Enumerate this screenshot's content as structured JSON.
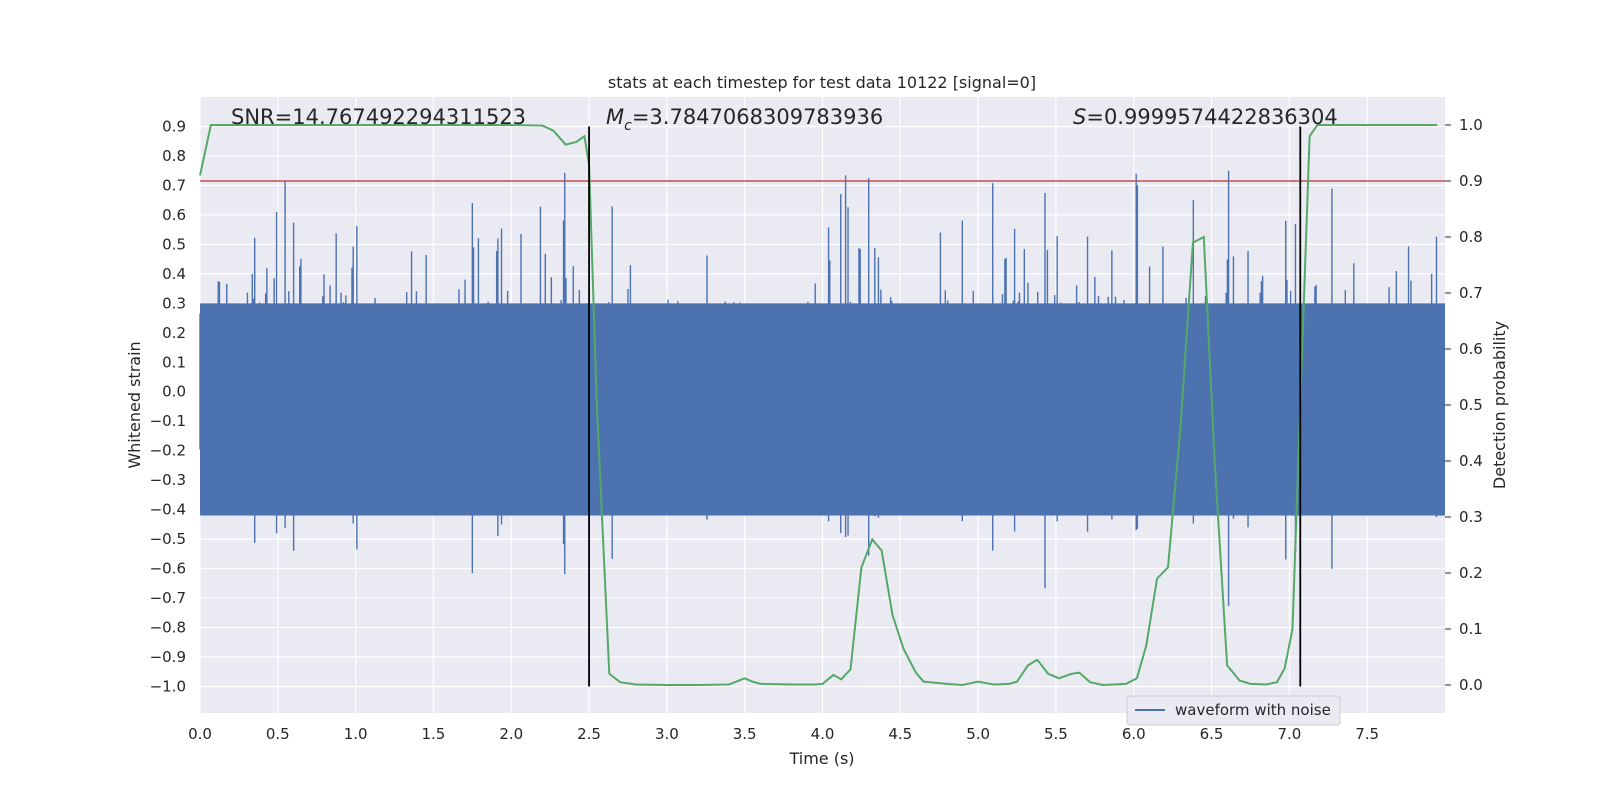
{
  "chart_data": {
    "type": "line",
    "title": "stats at each timestep for test data 10122 [signal=0]",
    "xlabel": "Time (s)",
    "ylabel": "Whitened strain",
    "ylabel_right": "Detection probability",
    "xlim": [
      0.0,
      8.0
    ],
    "ylim": [
      -1.09,
      1.0
    ],
    "ylim_right": [
      -0.05,
      1.05
    ],
    "xticks": [
      0.0,
      0.5,
      1.0,
      1.5,
      2.0,
      2.5,
      3.0,
      3.5,
      4.0,
      4.5,
      5.0,
      5.5,
      6.0,
      6.5,
      7.0,
      7.5
    ],
    "xtick_labels": [
      "0.0",
      "0.5",
      "1.0",
      "1.5",
      "2.0",
      "2.5",
      "3.0",
      "3.5",
      "4.0",
      "4.5",
      "5.0",
      "5.5",
      "6.0",
      "6.5",
      "7.0",
      "7.5"
    ],
    "yticks": [
      0.9,
      0.8,
      0.7,
      0.6,
      0.5,
      0.4,
      0.3,
      0.2,
      0.1,
      0.0,
      -0.1,
      -0.2,
      -0.3,
      -0.4,
      -0.5,
      -0.6,
      -0.7,
      -0.8,
      -0.9,
      -1.0
    ],
    "ytick_labels": [
      "0.9",
      "0.8",
      "0.7",
      "0.6",
      "0.5",
      "0.4",
      "0.3",
      "0.2",
      "0.1",
      "0.0",
      "−0.1",
      "−0.2",
      "−0.3",
      "−0.4",
      "−0.5",
      "−0.6",
      "−0.7",
      "−0.8",
      "−0.9",
      "−1.0"
    ],
    "yticks_right": [
      1.0,
      0.9,
      0.8,
      0.7,
      0.6,
      0.5,
      0.4,
      0.3,
      0.2,
      0.1,
      0.0
    ],
    "ytick_labels_right": [
      "1.0",
      "0.9",
      "0.8",
      "0.7",
      "0.6",
      "0.5",
      "0.4",
      "0.3",
      "0.2",
      "0.1",
      "0.0"
    ],
    "annotations": {
      "snr": "SNR=14.767492294311523",
      "mc_symbol": "M",
      "mc_sub": "c",
      "mc_value": "=3.7847068309783936",
      "s_symbol": "S",
      "s_value": "=0.9999574422836304"
    },
    "legend": {
      "label": "waveform with noise",
      "location": "lower right"
    },
    "threshold": {
      "value": 0.9,
      "axis": "right",
      "color": "#c44e52"
    },
    "vertical_markers": {
      "x": [
        2.5,
        7.07
      ],
      "ymin": -1.0,
      "ymax": 0.9,
      "color": "#000000"
    },
    "series": [
      {
        "name": "waveform with noise",
        "axis": "left",
        "color": "#4c72b0",
        "envelope_typical": 0.34,
        "samples_per_second": 128,
        "seed": 10122
      },
      {
        "name": "Detection probability",
        "axis": "right",
        "color": "#55a868",
        "x": [
          0.0,
          0.07,
          0.15,
          0.3,
          0.5,
          1.0,
          1.5,
          2.0,
          2.2,
          2.27,
          2.35,
          2.42,
          2.47,
          2.5,
          2.55,
          2.63,
          2.7,
          2.8,
          3.0,
          3.2,
          3.4,
          3.5,
          3.55,
          3.6,
          3.8,
          3.95,
          4.0,
          4.07,
          4.12,
          4.18,
          4.25,
          4.32,
          4.38,
          4.45,
          4.52,
          4.6,
          4.65,
          4.8,
          4.9,
          5.0,
          5.1,
          5.2,
          5.25,
          5.32,
          5.38,
          5.45,
          5.52,
          5.6,
          5.65,
          5.72,
          5.8,
          5.95,
          6.02,
          6.08,
          6.15,
          6.22,
          6.3,
          6.38,
          6.45,
          6.52,
          6.6,
          6.68,
          6.75,
          6.85,
          6.92,
          6.97,
          7.02,
          7.07,
          7.13,
          7.18,
          7.25,
          7.5,
          7.95
        ],
        "values": [
          0.91,
          1.0,
          1.0,
          1.0,
          1.0,
          1.0,
          1.0,
          1.0,
          0.999,
          0.99,
          0.965,
          0.97,
          0.98,
          0.93,
          0.5,
          0.02,
          0.005,
          0.001,
          0.0,
          0.0,
          0.001,
          0.012,
          0.006,
          0.002,
          0.001,
          0.001,
          0.002,
          0.018,
          0.01,
          0.028,
          0.21,
          0.26,
          0.24,
          0.125,
          0.065,
          0.022,
          0.006,
          0.002,
          0.0,
          0.006,
          0.001,
          0.002,
          0.006,
          0.035,
          0.045,
          0.02,
          0.012,
          0.02,
          0.022,
          0.005,
          0.0,
          0.002,
          0.012,
          0.07,
          0.19,
          0.21,
          0.46,
          0.79,
          0.8,
          0.4,
          0.035,
          0.008,
          0.002,
          0.001,
          0.005,
          0.03,
          0.1,
          0.5,
          0.98,
          1.0,
          1.0,
          1.0,
          1.0
        ]
      }
    ]
  }
}
